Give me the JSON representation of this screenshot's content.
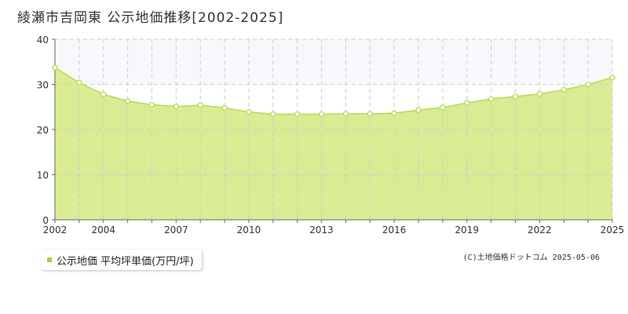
{
  "page": {
    "title": "綾瀬市吉岡東 公示地価推移[2002-2025]",
    "credit": "(C)土地価格ドットコム 2025-05-06"
  },
  "legend": {
    "label": "公示地価 平均坪単価(万円/坪)"
  },
  "colors": {
    "area_fill": "#d9ec94",
    "line": "#b5db56",
    "marker_fill": "#ffffff",
    "upper_band": "#f8f7fb",
    "grid": "#cccccc",
    "axis": "#666666"
  },
  "chart_data": {
    "type": "area",
    "x": [
      2002,
      2003,
      2004,
      2005,
      2006,
      2007,
      2008,
      2009,
      2010,
      2011,
      2012,
      2013,
      2014,
      2015,
      2016,
      2017,
      2018,
      2019,
      2020,
      2021,
      2022,
      2023,
      2024,
      2025
    ],
    "series": [
      {
        "name": "公示地価 平均坪単価(万円/坪)",
        "values": [
          33.7,
          30.4,
          27.8,
          26.3,
          25.5,
          25.1,
          25.4,
          24.8,
          23.9,
          23.4,
          23.4,
          23.4,
          23.5,
          23.5,
          23.6,
          24.3,
          24.9,
          25.9,
          26.8,
          27.3,
          27.9,
          28.8,
          30.0,
          31.5
        ]
      }
    ],
    "x_tick_labels": [
      "2002",
      "2004",
      "2007",
      "2010",
      "2013",
      "2016",
      "2019",
      "2022",
      "2025"
    ],
    "y_ticks": [
      0,
      10,
      20,
      30,
      40
    ],
    "xlim": [
      2002,
      2025
    ],
    "ylim": [
      0,
      40
    ],
    "grid": true,
    "legend_position": "bottom-left"
  }
}
